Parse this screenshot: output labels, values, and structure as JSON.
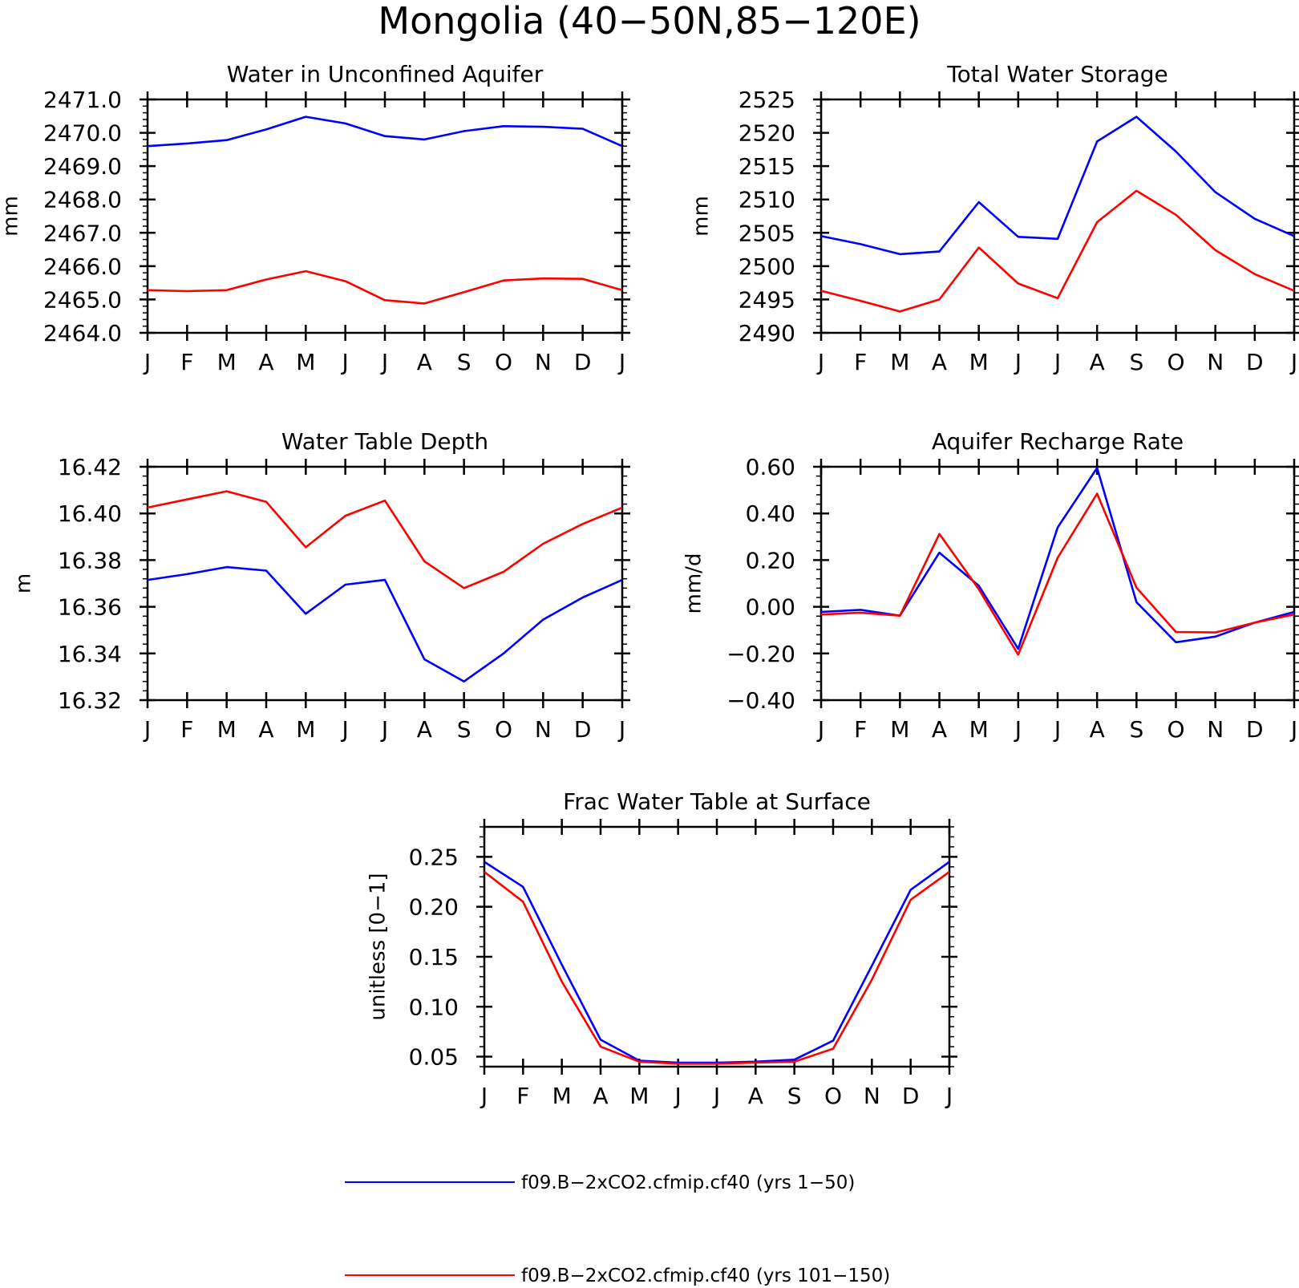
{
  "page_title": "Mongolia (40−50N,85−120E)",
  "colors": {
    "series1": "#0000ff",
    "series2": "#ff0000",
    "axis": "#000000"
  },
  "legend": [
    {
      "label": "f09.B−2xCO2.cfmip.cf40 (yrs 1−50)",
      "color": "#0000ff"
    },
    {
      "label": "f09.B−2xCO2.cfmip.cf40 (yrs 101−150)",
      "color": "#ff0000"
    }
  ],
  "chart_data": [
    {
      "type": "line",
      "title": "Water in Unconfined Aquifer",
      "ylabel": "mm",
      "x": [
        "J",
        "F",
        "M",
        "A",
        "M",
        "J",
        "J",
        "A",
        "S",
        "O",
        "N",
        "D",
        "J"
      ],
      "ylim": [
        2464.0,
        2471.0
      ],
      "yticks": [
        "2464.0",
        "2465.0",
        "2466.0",
        "2467.0",
        "2468.0",
        "2469.0",
        "2470.0",
        "2471.0"
      ],
      "ytick_values": [
        2464,
        2465,
        2466,
        2467,
        2468,
        2469,
        2470,
        2471
      ],
      "minor_step": 0.2,
      "series": [
        {
          "color": "#0000ff",
          "values": [
            2469.6,
            2469.68,
            2469.78,
            2470.1,
            2470.48,
            2470.28,
            2469.9,
            2469.8,
            2470.05,
            2470.2,
            2470.18,
            2470.12,
            2469.6
          ]
        },
        {
          "color": "#ff0000",
          "values": [
            2465.28,
            2465.25,
            2465.28,
            2465.6,
            2465.85,
            2465.55,
            2464.98,
            2464.88,
            2465.22,
            2465.57,
            2465.63,
            2465.62,
            2465.28
          ]
        }
      ]
    },
    {
      "type": "line",
      "title": "Total Water Storage",
      "ylabel": "mm",
      "x": [
        "J",
        "F",
        "M",
        "A",
        "M",
        "J",
        "J",
        "A",
        "S",
        "O",
        "N",
        "D",
        "J"
      ],
      "ylim": [
        2490,
        2525
      ],
      "yticks": [
        "2490",
        "2495",
        "2500",
        "2505",
        "2510",
        "2515",
        "2520",
        "2525"
      ],
      "ytick_values": [
        2490,
        2495,
        2500,
        2505,
        2510,
        2515,
        2520,
        2525
      ],
      "minor_step": 1,
      "series": [
        {
          "color": "#0000ff",
          "values": [
            2504.5,
            2503.3,
            2501.8,
            2502.2,
            2509.6,
            2504.4,
            2504.1,
            2518.7,
            2522.4,
            2517.2,
            2511.1,
            2507.1,
            2504.5
          ]
        },
        {
          "color": "#ff0000",
          "values": [
            2496.3,
            2494.8,
            2493.2,
            2495.0,
            2502.8,
            2497.4,
            2495.2,
            2506.6,
            2511.3,
            2507.7,
            2502.4,
            2498.8,
            2496.3
          ]
        }
      ]
    },
    {
      "type": "line",
      "title": "Water Table Depth",
      "ylabel": "m",
      "x": [
        "J",
        "F",
        "M",
        "A",
        "M",
        "J",
        "J",
        "A",
        "S",
        "O",
        "N",
        "D",
        "J"
      ],
      "ylim": [
        16.32,
        16.42
      ],
      "yticks": [
        "16.32",
        "16.34",
        "16.36",
        "16.38",
        "16.40",
        "16.42"
      ],
      "ytick_values": [
        16.32,
        16.34,
        16.36,
        16.38,
        16.4,
        16.42
      ],
      "minor_step": 0.004,
      "series": [
        {
          "color": "#0000ff",
          "values": [
            16.3715,
            16.374,
            16.377,
            16.3755,
            16.357,
            16.3695,
            16.3715,
            16.3375,
            16.328,
            16.34,
            16.3545,
            16.364,
            16.3715
          ]
        },
        {
          "color": "#ff0000",
          "values": [
            16.4025,
            16.406,
            16.4095,
            16.405,
            16.3855,
            16.399,
            16.4055,
            16.3795,
            16.368,
            16.375,
            16.387,
            16.3955,
            16.4025
          ]
        }
      ]
    },
    {
      "type": "line",
      "title": "Aquifer Recharge Rate",
      "ylabel": "mm/d",
      "x": [
        "J",
        "F",
        "M",
        "A",
        "M",
        "J",
        "J",
        "A",
        "S",
        "O",
        "N",
        "D",
        "J"
      ],
      "ylim": [
        -0.4,
        0.6
      ],
      "yticks": [
        "−0.40",
        "−0.20",
        "0.00",
        "0.20",
        "0.40",
        "0.60"
      ],
      "ytick_values": [
        -0.4,
        -0.2,
        0.0,
        0.2,
        0.4,
        0.6
      ],
      "minor_step": 0.04,
      "series": [
        {
          "color": "#0000ff",
          "values": [
            -0.022,
            -0.013,
            -0.038,
            0.232,
            0.09,
            -0.18,
            0.34,
            0.595,
            0.02,
            -0.152,
            -0.128,
            -0.068,
            -0.022
          ]
        },
        {
          "color": "#ff0000",
          "values": [
            -0.033,
            -0.025,
            -0.038,
            0.312,
            0.075,
            -0.205,
            0.21,
            0.485,
            0.082,
            -0.108,
            -0.11,
            -0.068,
            -0.033
          ]
        }
      ]
    },
    {
      "type": "line",
      "title": "Frac Water Table at Surface",
      "ylabel": "unitless [0−1]",
      "x": [
        "J",
        "F",
        "M",
        "A",
        "M",
        "J",
        "J",
        "A",
        "S",
        "O",
        "N",
        "D",
        "J"
      ],
      "ylim": [
        0.04,
        0.28
      ],
      "yticks": [
        "0.05",
        "0.10",
        "0.15",
        "0.20",
        "0.25"
      ],
      "ytick_values": [
        0.05,
        0.1,
        0.15,
        0.2,
        0.25
      ],
      "minor_step": 0.01,
      "series": [
        {
          "color": "#0000ff",
          "values": [
            0.245,
            0.22,
            0.142,
            0.067,
            0.046,
            0.044,
            0.044,
            0.045,
            0.047,
            0.066,
            0.141,
            0.217,
            0.245
          ]
        },
        {
          "color": "#ff0000",
          "values": [
            0.235,
            0.205,
            0.125,
            0.06,
            0.045,
            0.043,
            0.043,
            0.044,
            0.045,
            0.058,
            0.127,
            0.207,
            0.235
          ]
        }
      ]
    }
  ]
}
